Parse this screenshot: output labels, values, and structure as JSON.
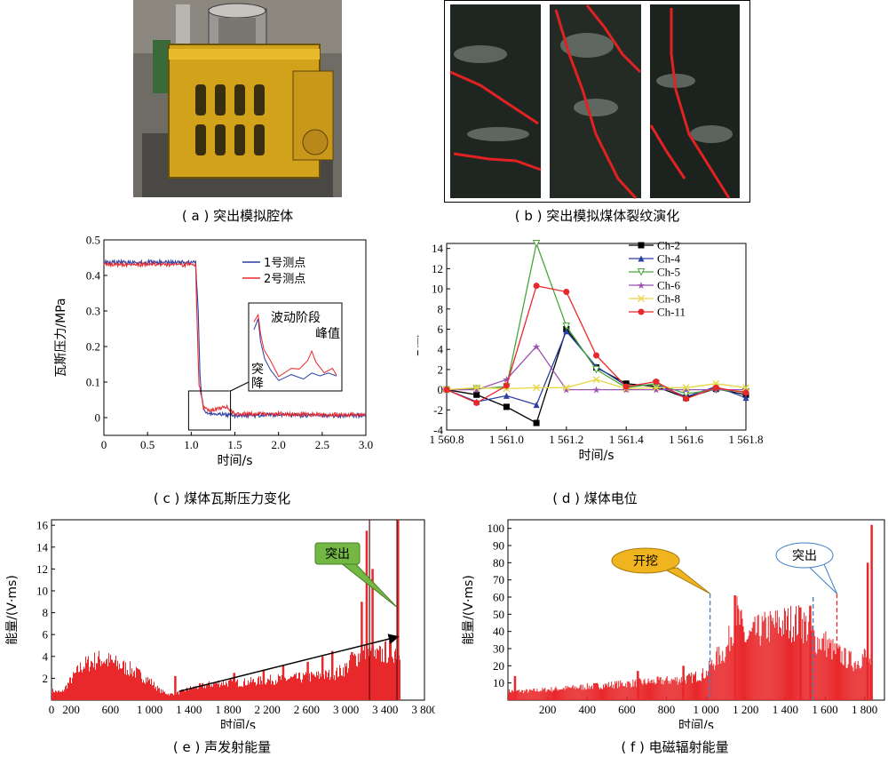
{
  "captions": {
    "a": "( a ) 突出模拟腔体",
    "b": "( b ) 突出模拟煤体裂纹演化",
    "c": "( c ) 煤体瓦斯压力变化",
    "d": "( d ) 煤体电位",
    "e": "( e ) 声发射能量",
    "f": "( f ) 电磁辐射能量"
  },
  "colors": {
    "red": "#e8282b",
    "blue": "#2a3fa6",
    "black": "#000000",
    "green": "#4aa63c",
    "purple": "#9b52b0",
    "yellow": "#e6d84a",
    "callout_green": "#73b843",
    "callout_orange": "#f0b41e",
    "callout_blue": "#3f7fc8"
  },
  "chart_data": [
    {
      "id": "c",
      "type": "line",
      "xlabel": "时间/s",
      "ylabel": "瓦斯压力/MPa",
      "xlim": [
        0,
        3.0
      ],
      "ylim": [
        -0.05,
        0.5
      ],
      "xticks": [
        "0",
        "0.5",
        "1.0",
        "1.5",
        "2.0",
        "2.5",
        "3.0"
      ],
      "yticks": [
        "0",
        "0.1",
        "0.2",
        "0.3",
        "0.4",
        "0.5"
      ],
      "legend": [
        "1号测点",
        "2号测点"
      ],
      "legend_position": "top-right",
      "annotations": [
        "波动阶段",
        "峰值",
        "突降"
      ],
      "series": [
        {
          "name": "1号测点",
          "color": "#2a3fa6",
          "x": [
            0,
            0.2,
            0.4,
            0.6,
            0.8,
            1.0,
            1.05,
            1.08,
            1.1,
            1.12,
            1.15,
            1.2,
            1.3,
            1.5,
            2.0,
            2.5,
            3.0
          ],
          "y": [
            0.437,
            0.438,
            0.436,
            0.438,
            0.437,
            0.437,
            0.436,
            0.3,
            0.12,
            0.06,
            0.02,
            0.01,
            0.01,
            0.005,
            0.008,
            0.006,
            0.006
          ]
        },
        {
          "name": "2号测点",
          "color": "#e8282b",
          "x": [
            0,
            0.2,
            0.4,
            0.6,
            0.8,
            1.0,
            1.05,
            1.07,
            1.09,
            1.11,
            1.14,
            1.2,
            1.3,
            1.4,
            1.5,
            2.0,
            2.5,
            3.0
          ],
          "y": [
            0.43,
            0.432,
            0.43,
            0.432,
            0.431,
            0.431,
            0.43,
            0.25,
            0.09,
            0.07,
            0.03,
            0.02,
            0.025,
            0.03,
            0.01,
            0.01,
            0.008,
            0.008
          ]
        }
      ]
    },
    {
      "id": "d",
      "type": "line",
      "xlabel": "时间/s",
      "ylabel": "电位/mV",
      "xlim": [
        1560.8,
        1561.8
      ],
      "ylim": [
        -4,
        14.5
      ],
      "xticks": [
        "1 560.8",
        "1 561.0",
        "1 561.2",
        "1 561.4",
        "1 561.6",
        "1 561.8"
      ],
      "yticks": [
        "-4",
        "-2",
        "0",
        "2",
        "4",
        "6",
        "8",
        "10",
        "12",
        "14"
      ],
      "legend_position": "top-right",
      "x": [
        1560.8,
        1560.9,
        1561.0,
        1561.1,
        1561.2,
        1561.3,
        1561.4,
        1561.5,
        1561.6,
        1561.7,
        1561.8
      ],
      "series": [
        {
          "name": "Ch-2",
          "color": "#000000",
          "marker": "square",
          "values": [
            0,
            -0.5,
            -1.7,
            -3.3,
            6.0,
            2.2,
            0.6,
            0.3,
            -0.8,
            0.1,
            -0.5
          ]
        },
        {
          "name": "Ch-4",
          "color": "#2a3fa6",
          "marker": "triangle-up",
          "values": [
            0,
            -1.2,
            -0.6,
            -1.5,
            5.8,
            2.3,
            0.4,
            0.5,
            -0.7,
            0.3,
            -0.8
          ]
        },
        {
          "name": "Ch-5",
          "color": "#4aa63c",
          "marker": "triangle-down",
          "values": [
            0,
            0.1,
            0.3,
            14.5,
            6.3,
            2.0,
            0.2,
            0.6,
            -0.4,
            0.0,
            -0.2
          ]
        },
        {
          "name": "Ch-6",
          "color": "#9b52b0",
          "marker": "star",
          "values": [
            0,
            0.0,
            1.0,
            4.3,
            0.0,
            0.0,
            0.0,
            0.0,
            0.0,
            0.0,
            0.0
          ]
        },
        {
          "name": "Ch-8",
          "color": "#e6d84a",
          "marker": "x",
          "values": [
            0,
            0.2,
            0.1,
            0.2,
            0.2,
            1.0,
            0.1,
            0.2,
            0.2,
            0.6,
            0.2
          ]
        },
        {
          "name": "Ch-11",
          "color": "#e8282b",
          "marker": "circle",
          "values": [
            0,
            -1.3,
            0.4,
            10.3,
            9.7,
            3.4,
            0.3,
            0.8,
            -0.9,
            0.2,
            -0.3
          ]
        }
      ]
    },
    {
      "id": "e",
      "type": "bar",
      "xlabel": "时间/s",
      "ylabel": "能量/(V·ms)",
      "xlim": [
        0,
        3800
      ],
      "ylim": [
        0,
        16.5
      ],
      "xticks": [
        "0",
        "200",
        "600",
        "1 000",
        "1 400",
        "1 800",
        "2 200",
        "2 600",
        "3 000",
        "3 400",
        "3 800"
      ],
      "yticks": [
        "2",
        "4",
        "6",
        "8",
        "10",
        "12",
        "14",
        "16"
      ],
      "annotations": [
        "突出"
      ],
      "envelope": [
        [
          0,
          1.0
        ],
        [
          100,
          0.8
        ],
        [
          200,
          2.2
        ],
        [
          300,
          3.5
        ],
        [
          400,
          4.0
        ],
        [
          500,
          4.3
        ],
        [
          600,
          4.0
        ],
        [
          700,
          3.6
        ],
        [
          800,
          3.2
        ],
        [
          900,
          2.6
        ],
        [
          1000,
          2.0
        ],
        [
          1100,
          1.0
        ],
        [
          1200,
          0.6
        ],
        [
          1300,
          0.8
        ],
        [
          1400,
          1.2
        ],
        [
          1500,
          1.4
        ],
        [
          1600,
          1.6
        ],
        [
          1700,
          1.8
        ],
        [
          1800,
          1.8
        ],
        [
          1900,
          1.8
        ],
        [
          2000,
          1.9
        ],
        [
          2100,
          2.0
        ],
        [
          2200,
          2.1
        ],
        [
          2300,
          2.2
        ],
        [
          2400,
          2.2
        ],
        [
          2500,
          2.3
        ],
        [
          2600,
          2.4
        ],
        [
          2700,
          2.5
        ],
        [
          2800,
          2.6
        ],
        [
          2900,
          2.8
        ],
        [
          3000,
          3.4
        ],
        [
          3100,
          4.5
        ],
        [
          3200,
          5.0
        ],
        [
          3300,
          4.5
        ],
        [
          3400,
          5.0
        ],
        [
          3500,
          5.2
        ],
        [
          3550,
          5.5
        ]
      ],
      "spikes": [
        [
          1250,
          2.2
        ],
        [
          1850,
          2.5
        ],
        [
          2150,
          2.8
        ],
        [
          2350,
          3.2
        ],
        [
          2600,
          3.5
        ],
        [
          2750,
          4.0
        ],
        [
          2850,
          4.5
        ],
        [
          3050,
          4.4
        ],
        [
          3150,
          9.0
        ],
        [
          3200,
          15.5
        ],
        [
          3260,
          12.0
        ],
        [
          3520,
          16.5
        ]
      ],
      "trend_arrow": [
        [
          1300,
          0.8
        ],
        [
          3530,
          5.8
        ]
      ]
    },
    {
      "id": "f",
      "type": "bar",
      "xlabel": "时间/s",
      "ylabel": "能量/(V·ms)",
      "xlim": [
        0,
        1900
      ],
      "ylim": [
        0,
        105
      ],
      "xticks": [
        "200",
        "400",
        "600",
        "800",
        "1 000",
        "1 200",
        "1 400",
        "1 600",
        "1 800"
      ],
      "yticks": [
        "10",
        "20",
        "30",
        "40",
        "50",
        "60",
        "70",
        "80",
        "90",
        "100"
      ],
      "annotations": [
        "开挖",
        "突出"
      ],
      "envelope": [
        [
          0,
          6
        ],
        [
          100,
          6
        ],
        [
          200,
          7
        ],
        [
          300,
          8
        ],
        [
          400,
          9
        ],
        [
          500,
          10
        ],
        [
          600,
          11
        ],
        [
          700,
          12
        ],
        [
          800,
          13
        ],
        [
          900,
          14
        ],
        [
          1000,
          18
        ],
        [
          1050,
          28
        ],
        [
          1100,
          33
        ],
        [
          1150,
          58
        ],
        [
          1200,
          40
        ],
        [
          1250,
          45
        ],
        [
          1300,
          48
        ],
        [
          1350,
          50
        ],
        [
          1400,
          51
        ],
        [
          1450,
          52
        ],
        [
          1500,
          50
        ],
        [
          1550,
          40
        ],
        [
          1600,
          38
        ],
        [
          1650,
          32
        ],
        [
          1700,
          28
        ],
        [
          1750,
          25
        ],
        [
          1800,
          30
        ],
        [
          1830,
          20
        ]
      ],
      "spikes": [
        [
          30,
          14
        ],
        [
          650,
          17
        ],
        [
          880,
          20
        ],
        [
          1140,
          61
        ],
        [
          1470,
          54
        ],
        [
          1520,
          55
        ],
        [
          1810,
          80
        ],
        [
          1830,
          102
        ]
      ]
    }
  ]
}
